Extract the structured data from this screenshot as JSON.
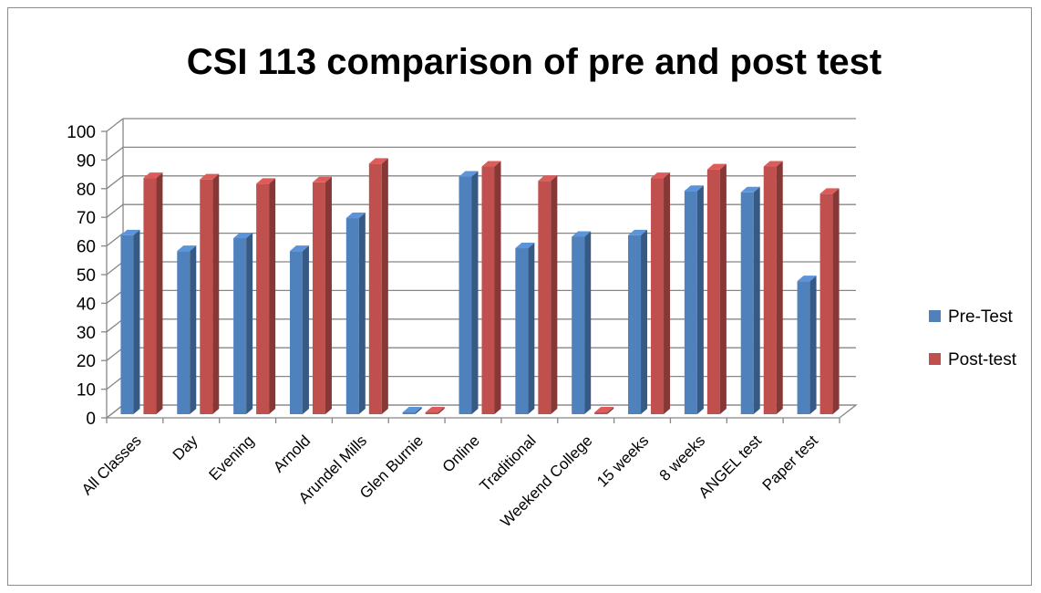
{
  "chart_data": {
    "type": "bar",
    "style": "3d-clustered-column",
    "title": "CSI 113 comparison of pre and post test",
    "xlabel": "",
    "ylabel": "",
    "ylim": [
      0,
      100
    ],
    "yticks": [
      0,
      10,
      20,
      30,
      40,
      50,
      60,
      70,
      80,
      90,
      100
    ],
    "grid": true,
    "legend_position": "right",
    "categories": [
      "All Classes",
      "Day",
      "Evening",
      "Arnold",
      "Arundel Mills",
      "Glen Burnie",
      "Online",
      "Traditional",
      "Weekend College",
      "15 weeks",
      "8 weeks",
      "ANGEL test",
      "Paper test"
    ],
    "series": [
      {
        "name": "Pre-Test",
        "color": "#4f81bd",
        "values": [
          65,
          59.5,
          64,
          59.5,
          71,
          0,
          85.5,
          60.5,
          64.5,
          65,
          80.5,
          80,
          49
        ]
      },
      {
        "name": "Post-test",
        "color": "#c0504d",
        "values": [
          85,
          84.5,
          83,
          83.5,
          90,
          0,
          89,
          84,
          0,
          85,
          88,
          89,
          79.5
        ]
      }
    ]
  }
}
